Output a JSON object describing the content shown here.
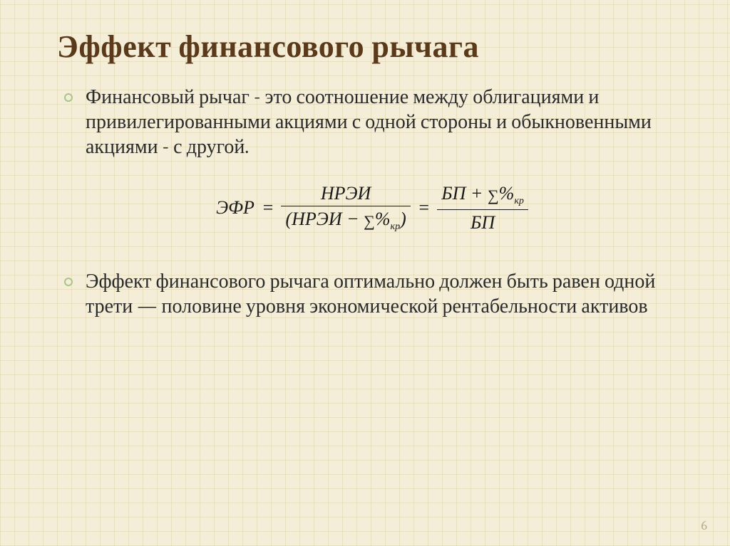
{
  "colors": {
    "background": "#f4eed8",
    "grid_line": "rgba(200,180,130,0.25)",
    "title_color": "#5a3a1a",
    "body_text": "#2a2a2a",
    "bullet_ring": "#a8c488",
    "formula_text": "#1a1a1a",
    "page_num": "#b8ad8a"
  },
  "typography": {
    "title_fontsize": 44,
    "body_fontsize": 28,
    "formula_fontsize": 26,
    "font_family": "Cambria, Georgia, Times New Roman, serif"
  },
  "title": "Эффект финансового рычага",
  "bullets": [
    "Финансовый рычаг - это соотношение между облигациями и привилегированными акциями с одной стороны и обыкновенными акциями - с другой.",
    "Эффект финансового рычага оптимально должен быть равен одной трети — половине уровня экономической рентабельности активов"
  ],
  "formula": {
    "lhs": "ЭФР",
    "eq": "=",
    "frac1_num": "НРЭИ",
    "frac1_den_prefix": "(НРЭИ − ",
    "frac1_den_sigma": "∑",
    "frac1_den_pct": "%",
    "frac1_den_sub": "кр",
    "frac1_den_suffix": ")",
    "frac2_num_prefix": "БП + ",
    "frac2_num_sigma": "∑",
    "frac2_num_pct": "%",
    "frac2_num_sub": "кр",
    "frac2_den": "БП"
  },
  "page_number": "6"
}
